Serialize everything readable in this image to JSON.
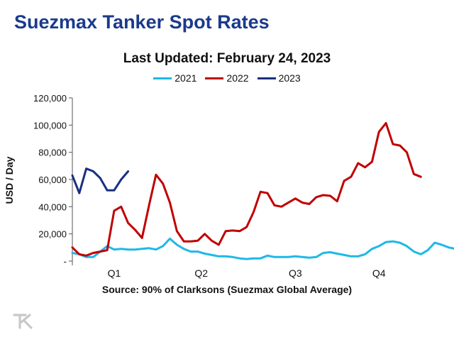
{
  "slide": {
    "title": "Suezmax Tanker Spot Rates"
  },
  "logo": {
    "text": "TK"
  },
  "chart_data": {
    "type": "line",
    "title": "Last Updated: February 24, 2023",
    "xlabel": "",
    "ylabel": "USD / Day",
    "source": "Source: 90% of Clarksons (Suezmax Global Average)",
    "ylim": [
      0,
      120000
    ],
    "yticks": [
      "-",
      "20,000",
      "40,000",
      "60,000",
      "80,000",
      "100,000",
      "120,000"
    ],
    "ytick_values": [
      0,
      20000,
      40000,
      60000,
      80000,
      100000,
      120000
    ],
    "xticks": [
      "Q1",
      "Q2",
      "Q3",
      "Q4"
    ],
    "xtick_weeks": [
      7,
      19.5,
      33,
      45
    ],
    "x_unit": "week",
    "xlim": [
      1,
      52
    ],
    "legend_position": "top",
    "series": [
      {
        "name": "2021",
        "color": "#1fb8e8",
        "values": [
          6000,
          5000,
          3000,
          3000,
          7000,
          11000,
          8500,
          9000,
          8500,
          8500,
          9000,
          9500,
          8500,
          11000,
          16500,
          12000,
          9000,
          7000,
          7000,
          5500,
          4500,
          3500,
          3500,
          3000,
          2000,
          1500,
          2000,
          2000,
          4000,
          3000,
          3000,
          3000,
          3500,
          3000,
          2500,
          3000,
          6000,
          6500,
          5500,
          4500,
          3500,
          3500,
          5000,
          9000,
          11000,
          14000,
          14500,
          13500,
          11000,
          7000,
          5000,
          8000,
          13500,
          12000,
          10000,
          9000
        ]
      },
      {
        "name": "2022",
        "color": "#c00000",
        "values": [
          10000,
          5000,
          4000,
          6000,
          7000,
          8000,
          37000,
          40000,
          28000,
          23000,
          17000,
          41000,
          63500,
          57000,
          43000,
          22000,
          14500,
          14500,
          15000,
          20000,
          15000,
          12000,
          22000,
          22500,
          22000,
          25000,
          36000,
          51000,
          50000,
          41000,
          40000,
          43000,
          46000,
          43000,
          42000,
          47000,
          48500,
          48000,
          44000,
          59000,
          62000,
          72000,
          69000,
          73000,
          95000,
          101500,
          86000,
          85000,
          80000,
          64000,
          62000
        ]
      },
      {
        "name": "2023",
        "color": "#1a2f80",
        "values": [
          63000,
          50000,
          68000,
          66000,
          61000,
          52000,
          52000,
          60000,
          66000
        ]
      }
    ]
  }
}
